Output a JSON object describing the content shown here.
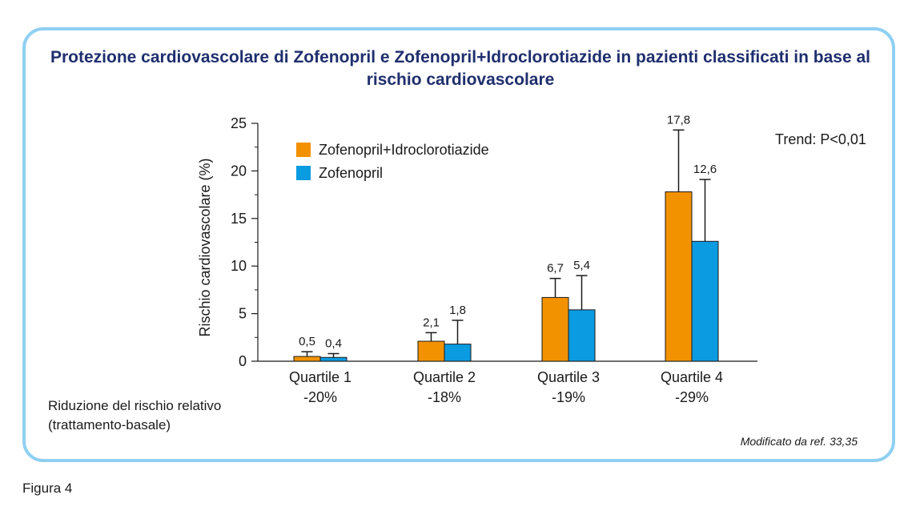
{
  "figure_label": "Figura 4",
  "source_note": "Modificato da ref. 33,35",
  "trend_text": "Trend: P<0,01",
  "rrr_label": [
    "Riduzione del rischio relativo",
    "(trattamento-basale)"
  ],
  "chart_data": {
    "type": "bar",
    "title": "Protezione cardiovascolare di Zofenopril e Zofenopril+Idroclorotiazide in pazienti classificati in base al rischio cardiovascolare",
    "ylabel": "Rischio cardiovascolare (%)",
    "xlabel": "",
    "ylim": [
      0,
      25
    ],
    "yticks": [
      0,
      5,
      10,
      15,
      20,
      25
    ],
    "categories": [
      "Quartile 1",
      "Quartile 2",
      "Quartile 3",
      "Quartile 4"
    ],
    "category_sublabels": [
      "-20%",
      "-18%",
      "-19%",
      "-29%"
    ],
    "legend_position": "top-left",
    "series": [
      {
        "name": "Zofenopril+Idroclorotiazide",
        "color": "#f39200",
        "values": [
          0.5,
          2.1,
          6.7,
          17.8
        ],
        "labels": [
          "0,5",
          "2,1",
          "6,7",
          "17,8"
        ],
        "error_upper": [
          1.0,
          3.0,
          8.7,
          24.3
        ]
      },
      {
        "name": "Zofenopril",
        "color": "#0a9be0",
        "values": [
          0.4,
          1.8,
          5.4,
          12.6
        ],
        "labels": [
          "0,4",
          "1,8",
          "5,4",
          "12,6"
        ],
        "error_upper": [
          0.8,
          4.3,
          9.0,
          19.1
        ]
      }
    ]
  }
}
